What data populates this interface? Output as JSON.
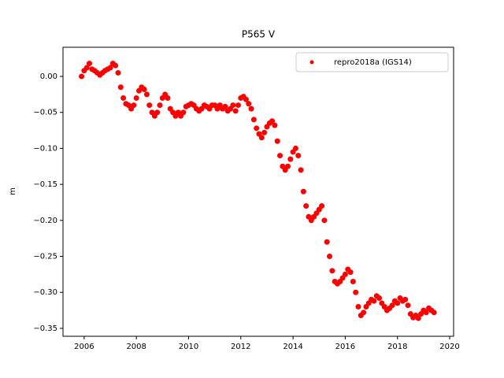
{
  "chart_data": {
    "type": "scatter",
    "title": "P565 V",
    "ylabel": "m",
    "xlim": [
      2005.19,
      2020.15
    ],
    "xticks": [
      2006,
      2008,
      2010,
      2012,
      2014,
      2016,
      2018,
      2020
    ],
    "ylim": [
      -0.361,
      0.0405
    ],
    "yticks": [
      {
        "value": 0,
        "label": "0.00"
      },
      {
        "value": -0.05,
        "label": "−0.05"
      },
      {
        "value": -0.1,
        "label": "−0.10"
      },
      {
        "value": -0.15,
        "label": "−0.15"
      },
      {
        "value": -0.2,
        "label": "−0.20"
      },
      {
        "value": -0.25,
        "label": "−0.25"
      },
      {
        "value": -0.3,
        "label": "−0.30"
      },
      {
        "value": -0.35,
        "label": "−0.35"
      }
    ],
    "legend_loc": "upper right",
    "series": [
      {
        "name": "repro2018a (IGS14)",
        "color": "#ff0000",
        "x": [
          2005.9,
          2006.0,
          2006.1,
          2006.2,
          2006.3,
          2006.4,
          2006.5,
          2006.6,
          2006.7,
          2006.8,
          2006.9,
          2007.0,
          2007.1,
          2007.2,
          2007.3,
          2007.4,
          2007.5,
          2007.6,
          2007.7,
          2007.8,
          2007.9,
          2008.0,
          2008.1,
          2008.2,
          2008.3,
          2008.4,
          2008.5,
          2008.6,
          2008.7,
          2008.8,
          2008.9,
          2009.0,
          2009.1,
          2009.2,
          2009.3,
          2009.4,
          2009.5,
          2009.6,
          2009.7,
          2009.8,
          2009.9,
          2010.0,
          2010.1,
          2010.2,
          2010.3,
          2010.4,
          2010.5,
          2010.6,
          2010.7,
          2010.8,
          2010.9,
          2011.0,
          2011.1,
          2011.2,
          2011.3,
          2011.4,
          2011.5,
          2011.6,
          2011.7,
          2011.8,
          2011.9,
          2012.0,
          2012.1,
          2012.2,
          2012.3,
          2012.4,
          2012.5,
          2012.6,
          2012.7,
          2012.8,
          2012.9,
          2013.0,
          2013.1,
          2013.2,
          2013.3,
          2013.4,
          2013.5,
          2013.6,
          2013.7,
          2013.8,
          2013.9,
          2014.0,
          2014.1,
          2014.2,
          2014.3,
          2014.4,
          2014.5,
          2014.6,
          2014.7,
          2014.8,
          2014.9,
          2015.0,
          2015.1,
          2015.2,
          2015.3,
          2015.4,
          2015.5,
          2015.6,
          2015.7,
          2015.8,
          2015.9,
          2016.0,
          2016.1,
          2016.2,
          2016.3,
          2016.4,
          2016.5,
          2016.6,
          2016.7,
          2016.8,
          2016.9,
          2017.0,
          2017.1,
          2017.2,
          2017.3,
          2017.4,
          2017.5,
          2017.6,
          2017.7,
          2017.8,
          2017.9,
          2018.0,
          2018.1,
          2018.2,
          2018.3,
          2018.4,
          2018.5,
          2018.6,
          2018.7,
          2018.8,
          2018.9,
          2019.0,
          2019.1,
          2019.2,
          2019.3,
          2019.4
        ],
        "values": [
          0.0,
          0.008,
          0.012,
          0.018,
          0.01,
          0.008,
          0.005,
          0.002,
          0.005,
          0.008,
          0.01,
          0.012,
          0.018,
          0.015,
          0.005,
          -0.015,
          -0.03,
          -0.038,
          -0.04,
          -0.045,
          -0.04,
          -0.03,
          -0.02,
          -0.015,
          -0.018,
          -0.025,
          -0.04,
          -0.05,
          -0.055,
          -0.05,
          -0.04,
          -0.03,
          -0.025,
          -0.03,
          -0.045,
          -0.05,
          -0.055,
          -0.05,
          -0.055,
          -0.05,
          -0.042,
          -0.04,
          -0.038,
          -0.04,
          -0.045,
          -0.048,
          -0.045,
          -0.04,
          -0.042,
          -0.045,
          -0.04,
          -0.04,
          -0.045,
          -0.04,
          -0.045,
          -0.042,
          -0.048,
          -0.045,
          -0.04,
          -0.048,
          -0.04,
          -0.03,
          -0.028,
          -0.032,
          -0.038,
          -0.045,
          -0.06,
          -0.072,
          -0.08,
          -0.085,
          -0.078,
          -0.07,
          -0.065,
          -0.062,
          -0.068,
          -0.09,
          -0.11,
          -0.125,
          -0.13,
          -0.125,
          -0.115,
          -0.105,
          -0.1,
          -0.11,
          -0.13,
          -0.16,
          -0.18,
          -0.195,
          -0.2,
          -0.195,
          -0.19,
          -0.185,
          -0.18,
          -0.2,
          -0.23,
          -0.25,
          -0.27,
          -0.285,
          -0.288,
          -0.285,
          -0.28,
          -0.275,
          -0.268,
          -0.272,
          -0.285,
          -0.3,
          -0.32,
          -0.332,
          -0.328,
          -0.32,
          -0.315,
          -0.31,
          -0.312,
          -0.305,
          -0.308,
          -0.315,
          -0.32,
          -0.325,
          -0.322,
          -0.318,
          -0.312,
          -0.315,
          -0.308,
          -0.312,
          -0.31,
          -0.318,
          -0.33,
          -0.335,
          -0.332,
          -0.336,
          -0.33,
          -0.325,
          -0.328,
          -0.322,
          -0.325,
          -0.328
        ]
      }
    ]
  }
}
